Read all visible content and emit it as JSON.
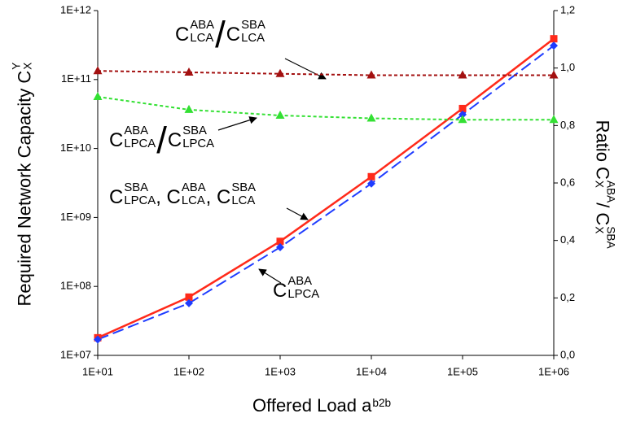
{
  "chart_data": {
    "type": "line",
    "x_label": [
      {
        "text": "Offered Load a",
        "sub": "b2b"
      }
    ],
    "y_label": [
      {
        "text": "Required Network Capacity C",
        "sup": "Y",
        "sub": "X"
      }
    ],
    "y2_label": [
      {
        "text": "Ratio C",
        "sup": "ABA",
        "sub": "X"
      },
      {
        "text": " / C",
        "sup": "SBA",
        "sub": "X"
      }
    ],
    "x": [
      10,
      100,
      1000,
      10000,
      100000,
      1000000
    ],
    "xscale": "log",
    "yscale": "log",
    "xlim": [
      10,
      1000000
    ],
    "xticks": [
      {
        "value": 10,
        "label": "1E+01"
      },
      {
        "value": 100,
        "label": "1E+02"
      },
      {
        "value": 1000,
        "label": "1E+03"
      },
      {
        "value": 10000,
        "label": "1E+04"
      },
      {
        "value": 100000,
        "label": "1E+05"
      },
      {
        "value": 1000000,
        "label": "1E+06"
      }
    ],
    "ylim": [
      10000000,
      1000000000000
    ],
    "yticks": [
      {
        "value": 10000000,
        "label": "1E+07"
      },
      {
        "value": 100000000,
        "label": "1E+08"
      },
      {
        "value": 1000000000,
        "label": "1E+09"
      },
      {
        "value": 10000000000,
        "label": "1E+10"
      },
      {
        "value": 100000000000,
        "label": "1E+11"
      },
      {
        "value": 1000000000000,
        "label": "1E+12"
      }
    ],
    "y2lim": [
      0,
      1.2
    ],
    "y2ticks": [
      {
        "value": 0,
        "label": "0,0"
      },
      {
        "value": 0.2,
        "label": "0,2"
      },
      {
        "value": 0.4,
        "label": "0,4"
      },
      {
        "value": 0.6,
        "label": "0,6"
      },
      {
        "value": 0.8,
        "label": "0,8"
      },
      {
        "value": 1.0,
        "label": "1,0"
      },
      {
        "value": 1.2,
        "label": "1,2"
      }
    ],
    "series": [
      {
        "color": "#ff2a1a",
        "marker": "square",
        "line_style": "solid",
        "axis": "y",
        "values": [
          18000000,
          70000000,
          450000000,
          3900000000,
          38000000000,
          390000000000
        ]
      },
      {
        "color": "#1f3cff",
        "marker": "diamond",
        "line_style": "dashed",
        "axis": "y",
        "values": [
          17000000,
          57000000,
          370000000,
          3100000000,
          31000000000,
          310000000000
        ]
      },
      {
        "color": "#a31010",
        "marker": "triangle",
        "line_style": "dotted",
        "axis": "y2",
        "values": [
          0.99,
          0.985,
          0.98,
          0.975,
          0.975,
          0.975
        ]
      },
      {
        "color": "#33e033",
        "marker": "triangle",
        "line_style": "dotted",
        "axis": "y2",
        "values": [
          0.9,
          0.855,
          0.835,
          0.825,
          0.82,
          0.82
        ]
      }
    ],
    "annotations": [
      {
        "segments": [
          {
            "text": "C",
            "sup": "ABA",
            "sub": "LCA"
          },
          {
            "text": "/"
          },
          {
            "text": "C",
            "sup": "SBA",
            "sub": "LCA"
          }
        ]
      },
      {
        "segments": [
          {
            "text": "C",
            "sup": "ABA",
            "sub": "LPCA"
          },
          {
            "text": "/"
          },
          {
            "text": "C",
            "sup": "SBA",
            "sub": "LPCA"
          }
        ]
      },
      {
        "segments": [
          {
            "text": "C",
            "sup": "SBA",
            "sub": "LPCA"
          },
          {
            "text": ", C",
            "sup": "ABA",
            "sub": "LCA"
          },
          {
            "text": ", C",
            "sup": "SBA",
            "sub": "LCA"
          }
        ]
      },
      {
        "segments": [
          {
            "text": "C",
            "sup": "ABA",
            "sub": "LPCA"
          }
        ]
      }
    ]
  }
}
